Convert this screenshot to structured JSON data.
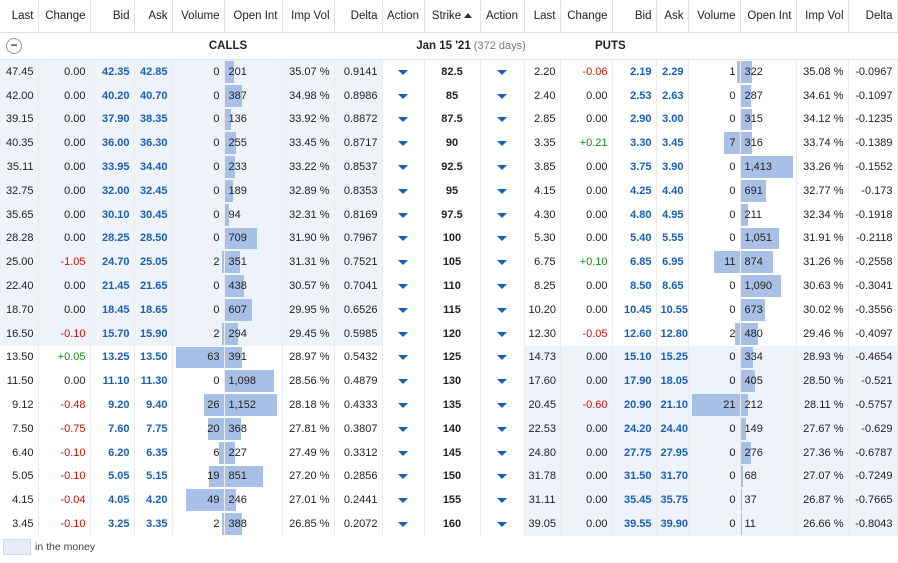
{
  "headers": [
    "Last",
    "Change",
    "Bid",
    "Ask",
    "Volume",
    "Open Int",
    "Imp Vol",
    "Delta",
    "Action",
    "Strike",
    "Action",
    "Last",
    "Change",
    "Bid",
    "Ask",
    "Volume",
    "Open Int",
    "Imp Vol",
    "Delta"
  ],
  "group": {
    "calls_label": "CALLS",
    "expiration": "Jan 15 '21",
    "days": "(372 days)",
    "puts_label": "PUTS"
  },
  "legend": {
    "text": "in the money"
  },
  "colors": {
    "itm": "#eef2f9",
    "bar": "#a9c0e6",
    "bid_ask": "#1a5fb4",
    "negative": "#cc1100",
    "positive": "#1a8a1a"
  },
  "rows": [
    {
      "strike": "82.5",
      "calls": {
        "last": "47.45",
        "change": "0.00",
        "bid": "42.35",
        "ask": "42.85",
        "volume": "0",
        "open_int": "201",
        "imp_vol": "35.07 %",
        "delta": "0.9141"
      },
      "puts": {
        "last": "2.20",
        "change": "-0.06",
        "bid": "2.19",
        "ask": "2.29",
        "volume": "1",
        "open_int": "322",
        "imp_vol": "35.08 %",
        "delta": "-0.0967"
      }
    },
    {
      "strike": "85",
      "calls": {
        "last": "42.00",
        "change": "0.00",
        "bid": "40.20",
        "ask": "40.70",
        "volume": "0",
        "open_int": "387",
        "imp_vol": "34.98 %",
        "delta": "0.8986"
      },
      "puts": {
        "last": "2.40",
        "change": "0.00",
        "bid": "2.53",
        "ask": "2.63",
        "volume": "0",
        "open_int": "287",
        "imp_vol": "34.61 %",
        "delta": "-0.1097"
      }
    },
    {
      "strike": "87.5",
      "calls": {
        "last": "39.15",
        "change": "0.00",
        "bid": "37.90",
        "ask": "38.35",
        "volume": "0",
        "open_int": "136",
        "imp_vol": "33.92 %",
        "delta": "0.8872"
      },
      "puts": {
        "last": "2.85",
        "change": "0.00",
        "bid": "2.90",
        "ask": "3.00",
        "volume": "0",
        "open_int": "315",
        "imp_vol": "34.12 %",
        "delta": "-0.1235"
      }
    },
    {
      "strike": "90",
      "calls": {
        "last": "40.35",
        "change": "0.00",
        "bid": "36.00",
        "ask": "36.30",
        "volume": "0",
        "open_int": "255",
        "imp_vol": "33.45 %",
        "delta": "0.8717"
      },
      "puts": {
        "last": "3.35",
        "change": "+0.21",
        "bid": "3.30",
        "ask": "3.45",
        "volume": "7",
        "open_int": "316",
        "imp_vol": "33.74 %",
        "delta": "-0.1389"
      }
    },
    {
      "strike": "92.5",
      "calls": {
        "last": "35.11",
        "change": "0.00",
        "bid": "33.95",
        "ask": "34.40",
        "volume": "0",
        "open_int": "233",
        "imp_vol": "33.22 %",
        "delta": "0.8537"
      },
      "puts": {
        "last": "3.85",
        "change": "0.00",
        "bid": "3.75",
        "ask": "3.90",
        "volume": "0",
        "open_int": "1,413",
        "imp_vol": "33.26 %",
        "delta": "-0.1552"
      }
    },
    {
      "strike": "95",
      "calls": {
        "last": "32.75",
        "change": "0.00",
        "bid": "32.00",
        "ask": "32.45",
        "volume": "0",
        "open_int": "189",
        "imp_vol": "32.89 %",
        "delta": "0.8353"
      },
      "puts": {
        "last": "4.15",
        "change": "0.00",
        "bid": "4.25",
        "ask": "4.40",
        "volume": "0",
        "open_int": "691",
        "imp_vol": "32.77 %",
        "delta": "-0.173"
      }
    },
    {
      "strike": "97.5",
      "calls": {
        "last": "35.65",
        "change": "0.00",
        "bid": "30.10",
        "ask": "30.45",
        "volume": "0",
        "open_int": "94",
        "imp_vol": "32.31 %",
        "delta": "0.8169"
      },
      "puts": {
        "last": "4.30",
        "change": "0.00",
        "bid": "4.80",
        "ask": "4.95",
        "volume": "0",
        "open_int": "211",
        "imp_vol": "32.34 %",
        "delta": "-0.1918"
      }
    },
    {
      "strike": "100",
      "calls": {
        "last": "28.28",
        "change": "0.00",
        "bid": "28.25",
        "ask": "28.50",
        "volume": "0",
        "open_int": "709",
        "imp_vol": "31.90 %",
        "delta": "0.7967"
      },
      "puts": {
        "last": "5.30",
        "change": "0.00",
        "bid": "5.40",
        "ask": "5.55",
        "volume": "0",
        "open_int": "1,051",
        "imp_vol": "31.91 %",
        "delta": "-0.2118"
      }
    },
    {
      "strike": "105",
      "calls": {
        "last": "25.00",
        "change": "-1.05",
        "bid": "24.70",
        "ask": "25.05",
        "volume": "2",
        "open_int": "351",
        "imp_vol": "31.31 %",
        "delta": "0.7521"
      },
      "puts": {
        "last": "6.75",
        "change": "+0.10",
        "bid": "6.85",
        "ask": "6.95",
        "volume": "11",
        "open_int": "874",
        "imp_vol": "31.26 %",
        "delta": "-0.2558"
      }
    },
    {
      "strike": "110",
      "calls": {
        "last": "22.40",
        "change": "0.00",
        "bid": "21.45",
        "ask": "21.65",
        "volume": "0",
        "open_int": "438",
        "imp_vol": "30.57 %",
        "delta": "0.7041"
      },
      "puts": {
        "last": "8.25",
        "change": "0.00",
        "bid": "8.50",
        "ask": "8.65",
        "volume": "0",
        "open_int": "1,090",
        "imp_vol": "30.63 %",
        "delta": "-0.3041"
      }
    },
    {
      "strike": "115",
      "calls": {
        "last": "18.70",
        "change": "0.00",
        "bid": "18.45",
        "ask": "18.65",
        "volume": "0",
        "open_int": "607",
        "imp_vol": "29.95 %",
        "delta": "0.6526"
      },
      "puts": {
        "last": "10.20",
        "change": "0.00",
        "bid": "10.45",
        "ask": "10.55",
        "volume": "0",
        "open_int": "673",
        "imp_vol": "30.02 %",
        "delta": "-0.3556"
      }
    },
    {
      "strike": "120",
      "calls": {
        "last": "16.50",
        "change": "-0.10",
        "bid": "15.70",
        "ask": "15.90",
        "volume": "2",
        "open_int": "294",
        "imp_vol": "29.45 %",
        "delta": "0.5985"
      },
      "puts": {
        "last": "12.30",
        "change": "-0.05",
        "bid": "12.60",
        "ask": "12.80",
        "volume": "2",
        "open_int": "480",
        "imp_vol": "29.46 %",
        "delta": "-0.4097"
      }
    },
    {
      "strike": "125",
      "calls": {
        "last": "13.50",
        "change": "+0.05",
        "bid": "13.25",
        "ask": "13.50",
        "volume": "63",
        "open_int": "391",
        "imp_vol": "28.97 %",
        "delta": "0.5432"
      },
      "puts": {
        "last": "14.73",
        "change": "0.00",
        "bid": "15.10",
        "ask": "15.25",
        "volume": "0",
        "open_int": "334",
        "imp_vol": "28.93 %",
        "delta": "-0.4654"
      }
    },
    {
      "strike": "130",
      "calls": {
        "last": "11.50",
        "change": "0.00",
        "bid": "11.10",
        "ask": "11.30",
        "volume": "0",
        "open_int": "1,098",
        "imp_vol": "28.56 %",
        "delta": "0.4879"
      },
      "puts": {
        "last": "17.60",
        "change": "0.00",
        "bid": "17.90",
        "ask": "18.05",
        "volume": "0",
        "open_int": "405",
        "imp_vol": "28.50 %",
        "delta": "-0.521"
      }
    },
    {
      "strike": "135",
      "calls": {
        "last": "9.12",
        "change": "-0.48",
        "bid": "9.20",
        "ask": "9.40",
        "volume": "26",
        "open_int": "1,152",
        "imp_vol": "28.18 %",
        "delta": "0.4333"
      },
      "puts": {
        "last": "20.45",
        "change": "-0.60",
        "bid": "20.90",
        "ask": "21.10",
        "volume": "21",
        "open_int": "212",
        "imp_vol": "28.11 %",
        "delta": "-0.5757"
      }
    },
    {
      "strike": "140",
      "calls": {
        "last": "7.50",
        "change": "-0.75",
        "bid": "7.60",
        "ask": "7.75",
        "volume": "20",
        "open_int": "368",
        "imp_vol": "27.81 %",
        "delta": "0.3807"
      },
      "puts": {
        "last": "22.53",
        "change": "0.00",
        "bid": "24.20",
        "ask": "24.40",
        "volume": "0",
        "open_int": "149",
        "imp_vol": "27.67 %",
        "delta": "-0.629"
      }
    },
    {
      "strike": "145",
      "calls": {
        "last": "6.40",
        "change": "-0.10",
        "bid": "6.20",
        "ask": "6.35",
        "volume": "6",
        "open_int": "227",
        "imp_vol": "27.49 %",
        "delta": "0.3312"
      },
      "puts": {
        "last": "24.80",
        "change": "0.00",
        "bid": "27.75",
        "ask": "27.95",
        "volume": "0",
        "open_int": "276",
        "imp_vol": "27.36 %",
        "delta": "-0.6787"
      }
    },
    {
      "strike": "150",
      "calls": {
        "last": "5.05",
        "change": "-0.10",
        "bid": "5.05",
        "ask": "5.15",
        "volume": "19",
        "open_int": "851",
        "imp_vol": "27.20 %",
        "delta": "0.2856"
      },
      "puts": {
        "last": "31.78",
        "change": "0.00",
        "bid": "31.50",
        "ask": "31.70",
        "volume": "0",
        "open_int": "68",
        "imp_vol": "27.07 %",
        "delta": "-0.7249"
      }
    },
    {
      "strike": "155",
      "calls": {
        "last": "4.15",
        "change": "-0.04",
        "bid": "4.05",
        "ask": "4.20",
        "volume": "49",
        "open_int": "246",
        "imp_vol": "27.01 %",
        "delta": "0.2441"
      },
      "puts": {
        "last": "31.11",
        "change": "0.00",
        "bid": "35.45",
        "ask": "35.75",
        "volume": "0",
        "open_int": "37",
        "imp_vol": "26.87 %",
        "delta": "-0.7665"
      }
    },
    {
      "strike": "160",
      "calls": {
        "last": "3.45",
        "change": "-0.10",
        "bid": "3.25",
        "ask": "3.35",
        "volume": "2",
        "open_int": "388",
        "imp_vol": "26.85 %",
        "delta": "0.2072"
      },
      "puts": {
        "last": "39.05",
        "change": "0.00",
        "bid": "39.55",
        "ask": "39.90",
        "volume": "0",
        "open_int": "11",
        "imp_vol": "26.66 %",
        "delta": "-0.8043"
      }
    }
  ]
}
